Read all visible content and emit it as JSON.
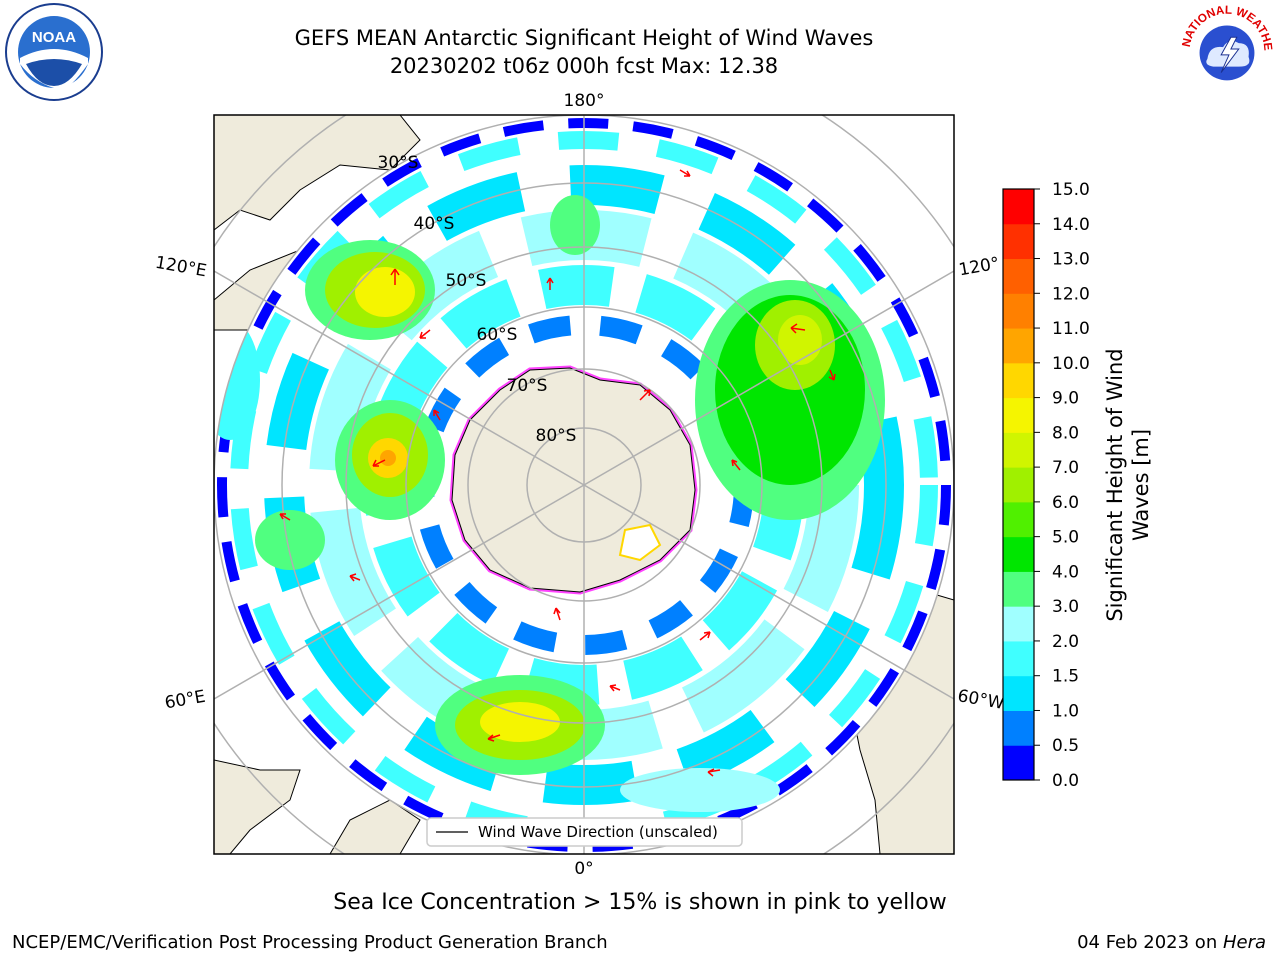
{
  "title": {
    "line1": "GEFS MEAN Antarctic Significant Height of Wind Waves",
    "line2": "20230202 t06z 000h fcst   Max: 12.38"
  },
  "map": {
    "projection": "south-polar-stereographic",
    "lon_labels": {
      "top": "180°",
      "bottom": "0°",
      "upper_left": "120°E",
      "upper_right": "120°",
      "lower_left": "60°E",
      "lower_right": "60°W"
    },
    "lat_labels": [
      "30°S",
      "40°S",
      "50°S",
      "60°S",
      "70°S",
      "80°S"
    ],
    "legend_label": "Wind Wave Direction (unscaled)",
    "colors": {
      "land": "#efebdc",
      "ocean": "#ffffff",
      "grid": "#b0b0b0",
      "arrows": "#ff0000",
      "ice_edge": "#ff44ff"
    }
  },
  "colorbar": {
    "label_line1": "Significant Height of Wind",
    "label_line2": "Waves [m]",
    "ticks": [
      "0.0",
      "0.5",
      "1.0",
      "1.5",
      "2.0",
      "3.0",
      "4.0",
      "5.0",
      "6.0",
      "7.0",
      "8.0",
      "9.0",
      "10.0",
      "11.0",
      "12.0",
      "13.0",
      "14.0",
      "15.0"
    ],
    "colors": [
      "#0000ff",
      "#0080ff",
      "#00e5ff",
      "#40ffff",
      "#a0ffff",
      "#50ff80",
      "#00e600",
      "#50f000",
      "#a0f000",
      "#d0f500",
      "#f5f500",
      "#ffd700",
      "#ffa500",
      "#ff8000",
      "#ff6000",
      "#ff3000",
      "#ff0000"
    ]
  },
  "subtitle": "Sea Ice Concentration > 15% is shown in pink to yellow",
  "footer": {
    "left": "NCEP/EMC/Verification Post Processing Product Generation Branch",
    "right_date": "04 Feb 2023 on ",
    "right_host": "Hera"
  },
  "logos": {
    "left": "NOAA",
    "right": "NATIONAL WEATHER SERVICE"
  }
}
